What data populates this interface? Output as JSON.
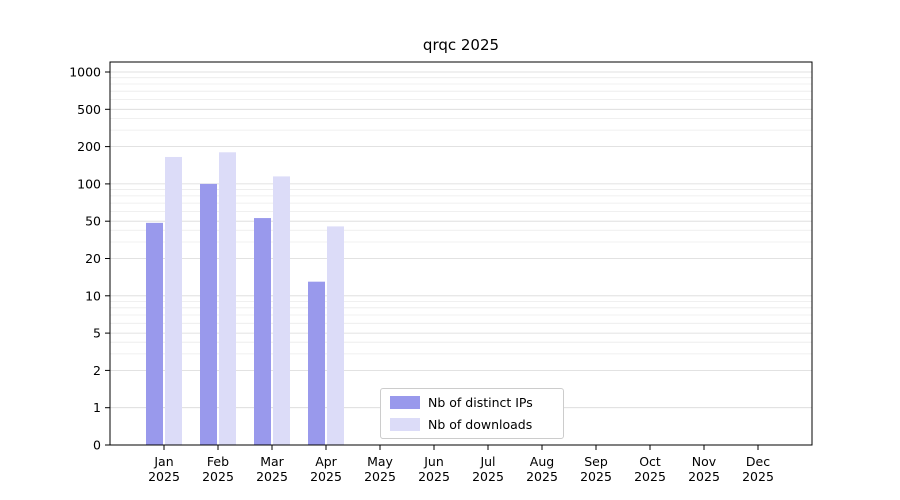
{
  "figure": {
    "background": "#ffffff"
  },
  "chart_data": {
    "type": "bar",
    "title": "qrqc 2025",
    "categories": [
      "Jan",
      "Feb",
      "Mar",
      "Apr",
      "May",
      "Jun",
      "Jul",
      "Aug",
      "Sep",
      "Oct",
      "Nov",
      "Dec"
    ],
    "category_year": "2025",
    "series": [
      {
        "name": "Nb of distinct IPs",
        "color": "#9999ec",
        "values": [
          48,
          100,
          53,
          13,
          0,
          0,
          0,
          0,
          0,
          0,
          0,
          0
        ]
      },
      {
        "name": "Nb of downloads",
        "color": "#dcdcf8",
        "values": [
          165,
          180,
          115,
          44,
          0,
          0,
          0,
          0,
          0,
          0,
          0,
          0
        ]
      }
    ],
    "yscale": "symlog-like custom ticks",
    "y_ticks": [
      0,
      1,
      2,
      5,
      10,
      20,
      50,
      100,
      200,
      500,
      1000
    ],
    "y_minor_gridlines": [
      3,
      4,
      6,
      7,
      8,
      9,
      30,
      40,
      60,
      70,
      80,
      90,
      300,
      400,
      600,
      700,
      800,
      900
    ],
    "grid": true,
    "legend": {
      "position": "lower-center-inside",
      "entries": [
        "Nb of distinct IPs",
        "Nb of downloads"
      ]
    }
  },
  "colors": {
    "grid_major": "#d9d9d9",
    "grid_minor": "#ebebeb",
    "axis": "#000000",
    "text": "#000000",
    "legend_border": "#cccccc"
  }
}
